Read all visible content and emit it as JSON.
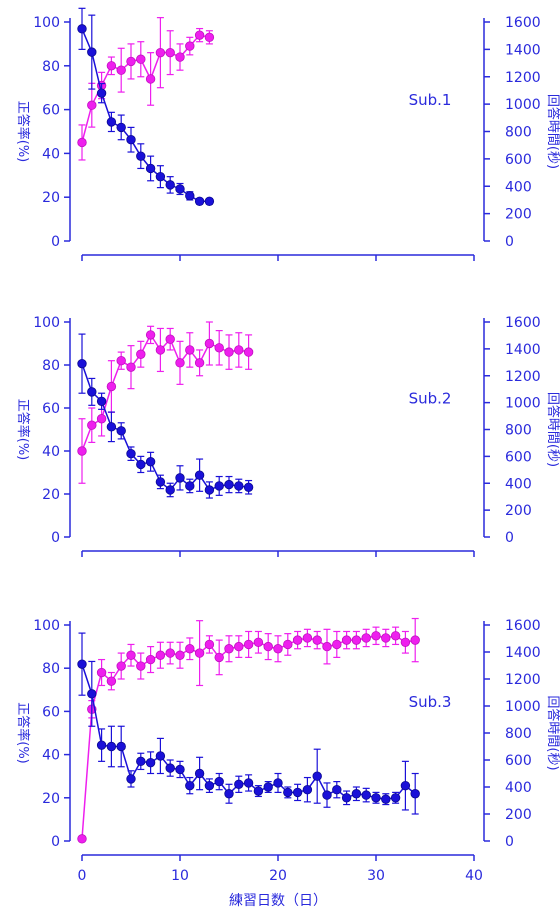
{
  "colors": {
    "axis": "#2a2adc",
    "accuracy": "#ee1fee",
    "time": "#1a10d8",
    "time_edge": "#0a0890"
  },
  "xlabel": "練習日数（日）",
  "chart_data": [
    {
      "type": "line",
      "panel_label": "Sub.1",
      "ylabel_left": "正答率(%)",
      "ylabel_right": "回答時間(秒)",
      "ylim_left": [
        0,
        100
      ],
      "ylim_right": [
        0,
        1600
      ],
      "xlim": [
        0,
        40
      ],
      "left_ticks": [
        0,
        20,
        40,
        60,
        80,
        100
      ],
      "right_ticks": [
        0,
        200,
        400,
        600,
        800,
        1000,
        1200,
        1400,
        1600
      ],
      "series": [
        {
          "axis": "left",
          "color": "#ee1fee",
          "x": [
            0,
            1,
            2,
            3,
            4,
            5,
            6,
            7,
            8,
            9,
            10,
            11,
            12,
            13
          ],
          "y": [
            45,
            62,
            71,
            80,
            78,
            82,
            83,
            74,
            86,
            86,
            84,
            89,
            94,
            93
          ],
          "err": [
            8,
            10,
            6,
            4,
            10,
            8,
            8,
            12,
            16,
            10,
            6,
            4,
            3,
            3
          ]
        },
        {
          "axis": "right",
          "color": "#1a10d8",
          "x": [
            0,
            1,
            2,
            3,
            4,
            5,
            6,
            7,
            8,
            9,
            10,
            11,
            12,
            13
          ],
          "y": [
            1550,
            1380,
            1080,
            870,
            830,
            740,
            620,
            530,
            470,
            410,
            380,
            330,
            290,
            290
          ],
          "err": [
            150,
            270,
            70,
            70,
            90,
            90,
            90,
            90,
            80,
            60,
            40,
            30,
            20,
            20
          ]
        }
      ]
    },
    {
      "type": "line",
      "panel_label": "Sub.2",
      "ylabel_left": "正答率(%)",
      "ylabel_right": "回答時間(秒)",
      "ylim_left": [
        0,
        100
      ],
      "ylim_right": [
        0,
        1600
      ],
      "xlim": [
        0,
        40
      ],
      "left_ticks": [
        0,
        20,
        40,
        60,
        80,
        100
      ],
      "right_ticks": [
        0,
        200,
        400,
        600,
        800,
        1000,
        1200,
        1400,
        1600
      ],
      "series": [
        {
          "axis": "left",
          "color": "#ee1fee",
          "x": [
            0,
            1,
            2,
            3,
            4,
            5,
            6,
            7,
            8,
            9,
            10,
            11,
            12,
            13,
            14,
            15,
            16,
            17
          ],
          "y": [
            40,
            52,
            55,
            70,
            82,
            79,
            85,
            94,
            87,
            92,
            81,
            87,
            81,
            90,
            88,
            86,
            87,
            86
          ],
          "err": [
            15,
            8,
            8,
            12,
            4,
            10,
            6,
            4,
            10,
            5,
            10,
            8,
            6,
            10,
            8,
            8,
            8,
            8
          ]
        },
        {
          "axis": "right",
          "color": "#1a10d8",
          "x": [
            0,
            1,
            2,
            3,
            4,
            5,
            6,
            7,
            8,
            9,
            10,
            11,
            12,
            13,
            14,
            15,
            16,
            17
          ],
          "y": [
            1290,
            1080,
            1010,
            820,
            790,
            620,
            540,
            560,
            410,
            350,
            440,
            380,
            460,
            350,
            380,
            390,
            380,
            370
          ],
          "err": [
            220,
            100,
            60,
            110,
            60,
            50,
            60,
            70,
            50,
            50,
            90,
            50,
            120,
            60,
            70,
            60,
            50,
            50
          ]
        }
      ]
    },
    {
      "type": "line",
      "panel_label": "Sub.3",
      "ylabel_left": "正答率(%)",
      "ylabel_right": "回答時間(秒)",
      "ylim_left": [
        0,
        100
      ],
      "ylim_right": [
        0,
        1600
      ],
      "xlim": [
        0,
        40
      ],
      "left_ticks": [
        0,
        20,
        40,
        60,
        80,
        100
      ],
      "right_ticks": [
        0,
        200,
        400,
        600,
        800,
        1000,
        1200,
        1400,
        1600
      ],
      "x_ticks": [
        0,
        10,
        20,
        30,
        40
      ],
      "series": [
        {
          "axis": "left",
          "color": "#ee1fee",
          "x": [
            0,
            1,
            2,
            3,
            4,
            5,
            6,
            7,
            8,
            9,
            10,
            11,
            12,
            13,
            14,
            15,
            16,
            17,
            18,
            19,
            20,
            21,
            22,
            23,
            24,
            25,
            26,
            27,
            28,
            29,
            30,
            31,
            32,
            33,
            34
          ],
          "y": [
            1,
            61,
            78,
            74,
            81,
            86,
            81,
            84,
            86,
            87,
            86,
            89,
            87,
            91,
            85,
            89,
            90,
            91,
            92,
            90,
            89,
            91,
            93,
            94,
            93,
            90,
            91,
            93,
            93,
            94,
            95,
            94,
            95,
            92,
            93
          ],
          "err": [
            1,
            4,
            6,
            4,
            6,
            5,
            6,
            6,
            6,
            5,
            6,
            5,
            15,
            4,
            8,
            6,
            5,
            6,
            5,
            6,
            6,
            5,
            4,
            4,
            4,
            8,
            6,
            4,
            4,
            4,
            4,
            4,
            4,
            5,
            10
          ]
        },
        {
          "axis": "right",
          "color": "#1a10d8",
          "x": [
            0,
            1,
            2,
            3,
            4,
            5,
            6,
            7,
            8,
            9,
            10,
            11,
            12,
            13,
            14,
            15,
            16,
            17,
            18,
            19,
            20,
            21,
            22,
            23,
            24,
            25,
            26,
            27,
            28,
            29,
            30,
            31,
            32,
            33,
            34
          ],
          "y": [
            1310,
            1090,
            710,
            700,
            700,
            460,
            590,
            580,
            630,
            540,
            530,
            410,
            500,
            410,
            440,
            350,
            420,
            430,
            370,
            400,
            430,
            360,
            360,
            380,
            480,
            340,
            380,
            320,
            350,
            340,
            320,
            310,
            320,
            410,
            350
          ],
          "err": [
            230,
            240,
            120,
            150,
            150,
            60,
            60,
            80,
            130,
            60,
            60,
            60,
            120,
            50,
            60,
            70,
            60,
            60,
            40,
            40,
            70,
            40,
            60,
            90,
            200,
            90,
            60,
            50,
            50,
            50,
            40,
            40,
            40,
            180,
            150
          ]
        }
      ]
    }
  ]
}
